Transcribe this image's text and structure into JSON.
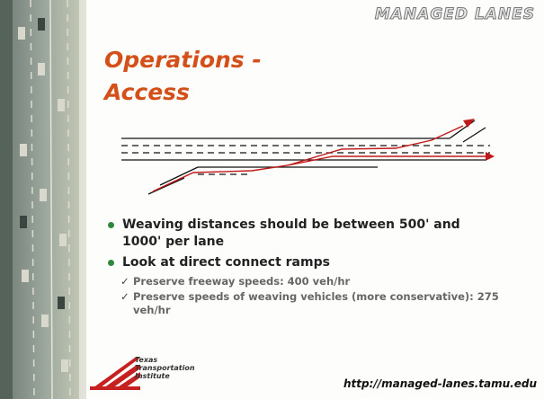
{
  "header": {
    "brand": "MANAGED LANES"
  },
  "title": {
    "lines": [
      "Operations -",
      "Access"
    ]
  },
  "bullets": [
    {
      "text": "Weaving distances should be between 500' and 1000' per lane",
      "subs": []
    },
    {
      "text": "Look at direct connect ramps",
      "subs": [
        "Preserve freeway speeds: 400 veh/hr",
        "Preserve speeds of weaving vehicles (more conservative): 275 veh/hr"
      ]
    }
  ],
  "footer": {
    "logo_lines": [
      "Texas",
      "Transportation",
      "Institute"
    ],
    "url": "http://managed-lanes.tamu.edu"
  }
}
